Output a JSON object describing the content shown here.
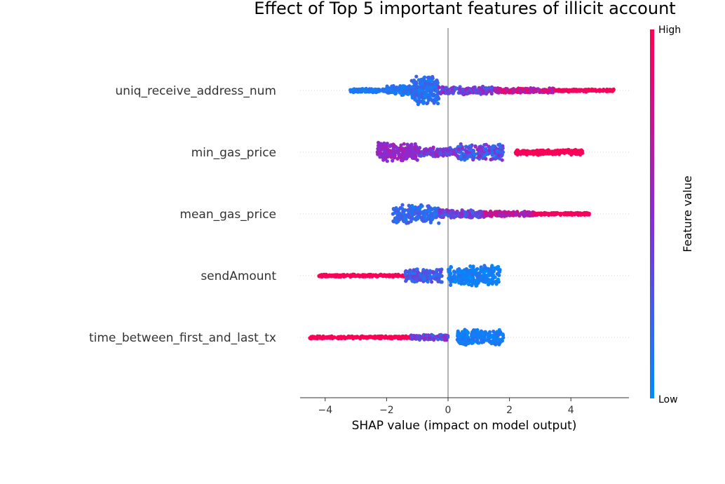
{
  "chart_data": {
    "type": "scatter",
    "subtype": "shap-beeswarm",
    "title": "Effect of Top 5 important features of illicit account",
    "xlabel": "SHAP value (impact on model output)",
    "xlim": [
      -4.8,
      5.9
    ],
    "xticks": [
      -4,
      -2,
      0,
      2,
      4
    ],
    "xtick_labels": [
      "−4",
      "−2",
      "0",
      "2",
      "4"
    ],
    "features": [
      {
        "name": "uniq_receive_address_num",
        "min": -3.2,
        "max": 5.4,
        "low_side": "negative",
        "high_side": "positive"
      },
      {
        "name": "min_gas_price",
        "min": -2.3,
        "max": 4.4,
        "low_side": "mixed",
        "high_side": "positive"
      },
      {
        "name": "mean_gas_price",
        "min": -1.8,
        "max": 4.6,
        "low_side": "negative",
        "high_side": "positive"
      },
      {
        "name": "sendAmount",
        "min": -4.2,
        "max": 1.7,
        "low_side": "positive",
        "high_side": "negative"
      },
      {
        "name": "time_between_first_and_last_tx",
        "min": -4.5,
        "max": 1.8,
        "low_side": "positive",
        "high_side": "negative"
      }
    ],
    "colorbar": {
      "label": "Feature value",
      "high_label": "High",
      "low_label": "Low",
      "high_color": "#ff0052",
      "low_color": "#008bfb"
    }
  }
}
